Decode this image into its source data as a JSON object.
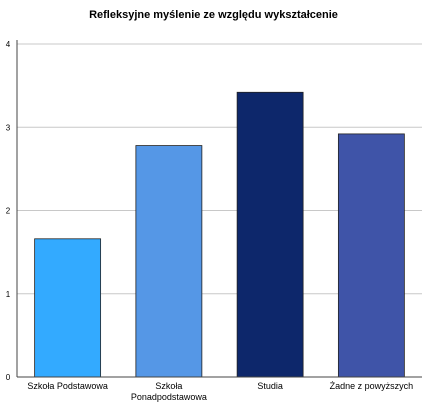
{
  "chart_data": {
    "type": "bar",
    "title": "Refleksyjne myślenie ze względu wykształcenie",
    "xlabel": "",
    "ylabel": "",
    "categories": [
      [
        "Szkoła Podstawowa"
      ],
      [
        "Szkoła",
        "Ponadpodstawowa"
      ],
      [
        "Studia"
      ],
      [
        "Żadne z powyższych"
      ]
    ],
    "values": [
      1.66,
      2.78,
      3.42,
      2.92
    ],
    "colors": [
      "#33aaff",
      "#5597e6",
      "#0d276b",
      "#3f54a8"
    ],
    "ylim": [
      0,
      4
    ],
    "yticks": [
      "0",
      "1",
      "2",
      "3",
      "4"
    ],
    "grid": true,
    "legend": "none"
  }
}
